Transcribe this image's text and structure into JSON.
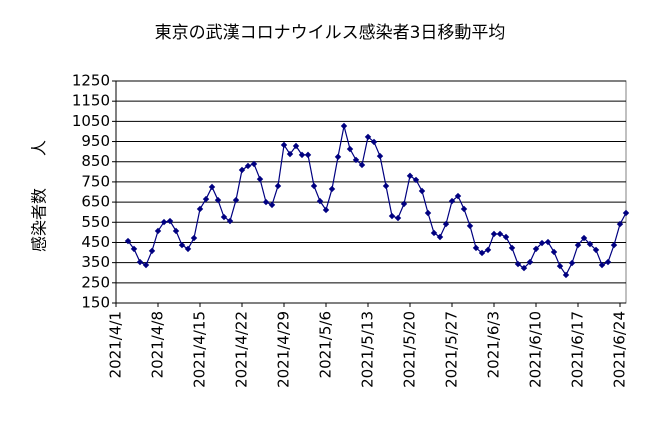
{
  "chart_data": {
    "type": "line",
    "title": "東京の武漢コロナウイルス感染者3日移動平均",
    "y_label": "感染者数　　人",
    "categories": [
      "2021/4/1",
      null,
      null,
      null,
      null,
      null,
      null,
      "2021/4/8",
      null,
      null,
      null,
      null,
      null,
      null,
      "2021/4/15",
      null,
      null,
      null,
      null,
      null,
      null,
      "2021/4/22",
      null,
      null,
      null,
      null,
      null,
      null,
      "2021/4/29",
      null,
      null,
      null,
      null,
      null,
      null,
      "2021/5/6",
      null,
      null,
      null,
      null,
      null,
      null,
      "2021/5/13",
      null,
      null,
      null,
      null,
      null,
      null,
      "2021/5/20",
      null,
      null,
      null,
      null,
      null,
      null,
      "2021/5/27",
      null,
      null,
      null,
      null,
      null,
      null,
      "2021/6/3",
      null,
      null,
      null,
      null,
      null,
      null,
      "2021/6/10",
      null,
      null,
      null,
      null,
      null,
      null,
      "2021/6/17",
      null,
      null,
      null,
      null,
      null,
      null,
      "2021/6/24",
      null
    ],
    "values": [
      null,
      null,
      457,
      418,
      353,
      338,
      408,
      507,
      551,
      556,
      507,
      437,
      418,
      472,
      616,
      665,
      725,
      660,
      576,
      556,
      660,
      809,
      829,
      839,
      764,
      650,
      636,
      730,
      933,
      888,
      928,
      884,
      884,
      730,
      655,
      611,
      715,
      874,
      1027,
      913,
      859,
      834,
      973,
      948,
      878,
      730,
      581,
      571,
      641,
      780,
      760,
      705,
      596,
      497,
      477,
      541,
      655,
      680,
      616,
      532,
      423,
      398,
      413,
      492,
      492,
      477,
      423,
      343,
      323,
      353,
      418,
      447,
      452,
      403,
      333,
      289,
      348,
      437,
      472,
      442,
      413,
      338,
      353,
      437,
      541,
      596
    ],
    "color": "#000080",
    "ylim": [
      150,
      1250
    ],
    "yticks": [
      150,
      250,
      350,
      450,
      550,
      650,
      750,
      850,
      950,
      1050,
      1150,
      1250
    ],
    "grid": true
  }
}
